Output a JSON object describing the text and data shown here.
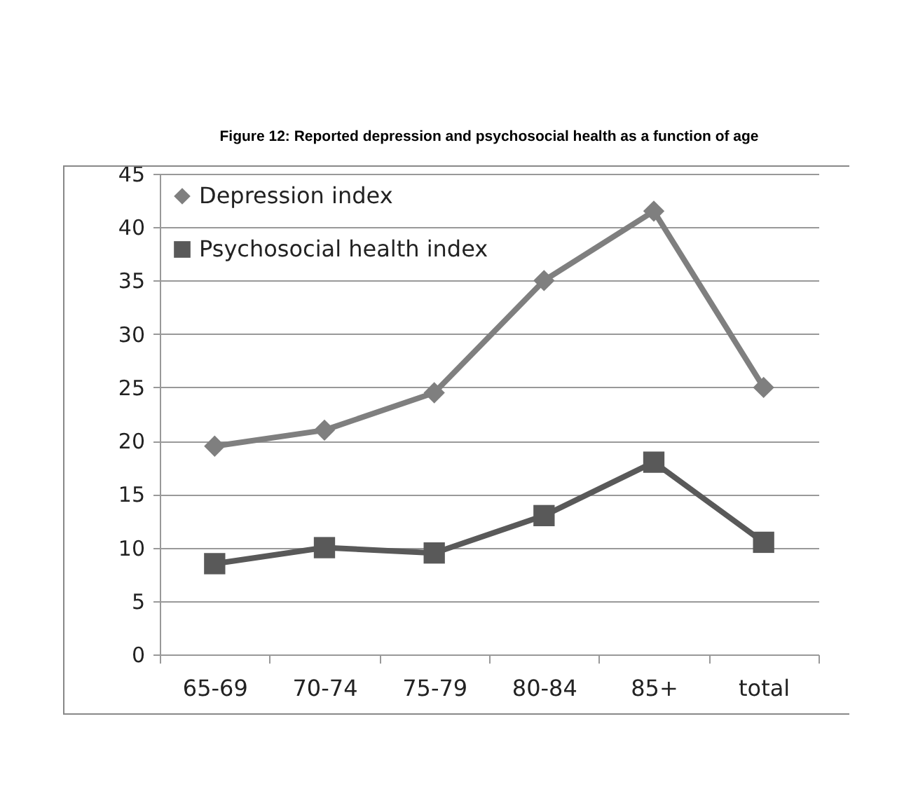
{
  "chart_data": {
    "type": "line",
    "title": "Figure 12: Reported depression and psychosocial health as a function of age",
    "categories": [
      "65-69",
      "70-74",
      "75-79",
      "80-84",
      "85+",
      "total"
    ],
    "series": [
      {
        "name": "Depression index",
        "color": "#7f7f7f",
        "marker": "diamond",
        "values": [
          19.5,
          21,
          24.5,
          35,
          41.5,
          25
        ]
      },
      {
        "name": "Psychosocial health index",
        "color": "#595959",
        "marker": "square",
        "values": [
          8.5,
          10,
          9.5,
          13,
          18,
          10.5
        ]
      }
    ],
    "ylim": [
      0,
      45
    ],
    "yticks": [
      0,
      5,
      10,
      15,
      20,
      25,
      30,
      35,
      40,
      45
    ],
    "grid": "y",
    "legend": "top left"
  }
}
